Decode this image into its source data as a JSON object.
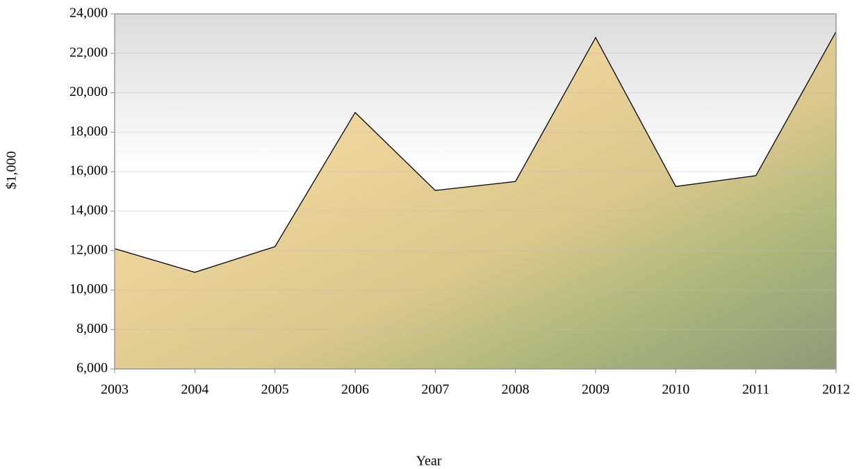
{
  "chart_data": {
    "type": "area",
    "x_label": "Year",
    "y_label": "$1,000",
    "categories": [
      "2003",
      "2004",
      "2005",
      "2006",
      "2007",
      "2008",
      "2009",
      "2010",
      "2011",
      "2012"
    ],
    "values": [
      12100,
      10900,
      12200,
      19000,
      15050,
      15500,
      22800,
      15250,
      15800,
      23100
    ],
    "line_color": "#000000",
    "ylim": [
      6000,
      24000
    ],
    "yticks": [
      {
        "value": 6000,
        "label": "6,000"
      },
      {
        "value": 8000,
        "label": "8,000"
      },
      {
        "value": 10000,
        "label": "10,000"
      },
      {
        "value": 12000,
        "label": "12,000"
      },
      {
        "value": 14000,
        "label": "14,000"
      },
      {
        "value": 16000,
        "label": "16,000"
      },
      {
        "value": 18000,
        "label": "18,000"
      },
      {
        "value": 20000,
        "label": "20,000"
      },
      {
        "value": 22000,
        "label": "22,000"
      },
      {
        "value": 24000,
        "label": "24,000"
      }
    ],
    "grid": true
  }
}
